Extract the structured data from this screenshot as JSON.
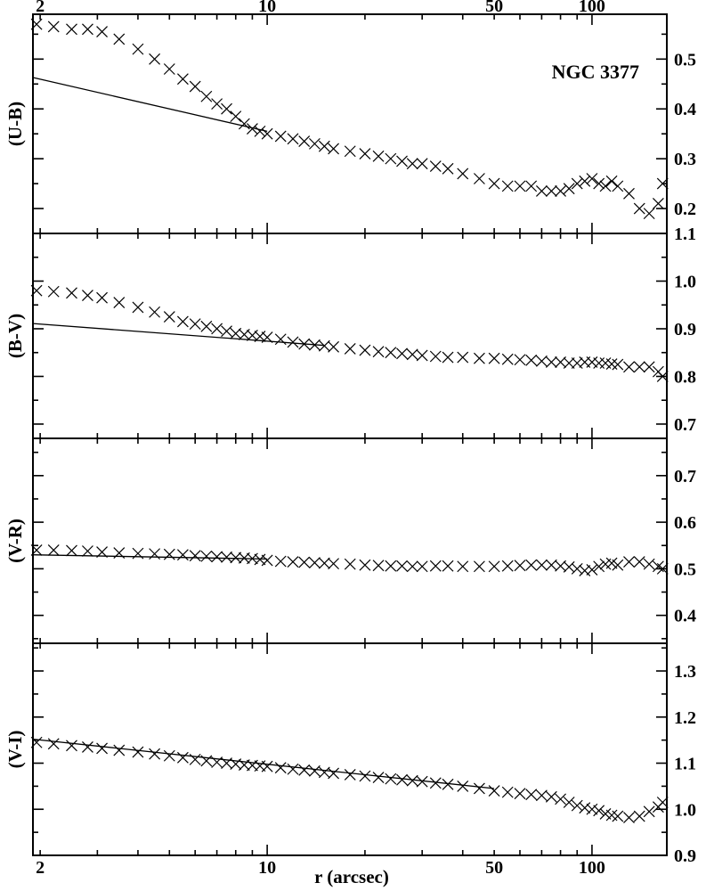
{
  "chart_data": {
    "type": "scatter",
    "galaxy_label": "NGC 3377",
    "xlabel": "r (arcsec)",
    "x_scale": "log",
    "xlim": [
      1.9,
      170
    ],
    "x_top_ticks": [
      2,
      10,
      50,
      100
    ],
    "x_bottom_ticks": [
      2,
      10,
      50,
      100
    ],
    "panels": [
      {
        "ylabel": "(U-B)",
        "ylim": [
          0.15,
          0.59
        ],
        "yticks": [
          0.2,
          0.3,
          0.4,
          0.5
        ],
        "fit_line": {
          "x": [
            1.9,
            10
          ],
          "y": [
            0.463,
            0.355
          ]
        },
        "points": {
          "x": [
            1.95,
            2.2,
            2.5,
            2.8,
            3.1,
            3.5,
            4.0,
            4.5,
            5.0,
            5.5,
            6.0,
            6.5,
            7.0,
            7.5,
            8.0,
            8.5,
            9.0,
            9.5,
            10,
            11,
            12,
            13,
            14,
            15,
            16,
            18,
            20,
            22,
            24,
            26,
            28,
            30,
            33,
            36,
            40,
            45,
            50,
            55,
            60,
            65,
            70,
            75,
            80,
            85,
            90,
            95,
            100,
            105,
            110,
            115,
            120,
            130,
            140,
            150,
            160,
            165
          ],
          "y": [
            0.57,
            0.565,
            0.56,
            0.56,
            0.555,
            0.54,
            0.52,
            0.5,
            0.48,
            0.46,
            0.445,
            0.425,
            0.41,
            0.4,
            0.385,
            0.37,
            0.36,
            0.355,
            0.35,
            0.345,
            0.34,
            0.335,
            0.33,
            0.325,
            0.32,
            0.315,
            0.31,
            0.305,
            0.3,
            0.295,
            0.29,
            0.29,
            0.285,
            0.28,
            0.27,
            0.26,
            0.25,
            0.245,
            0.245,
            0.245,
            0.235,
            0.235,
            0.235,
            0.24,
            0.25,
            0.255,
            0.26,
            0.25,
            0.245,
            0.255,
            0.245,
            0.23,
            0.2,
            0.19,
            0.21,
            0.25
          ]
        }
      },
      {
        "ylabel": "(B-V)",
        "ylim": [
          0.67,
          1.1
        ],
        "yticks": [
          0.7,
          0.8,
          0.9,
          1.0,
          1.1
        ],
        "fit_line": {
          "x": [
            1.9,
            15
          ],
          "y": [
            0.911,
            0.865
          ]
        },
        "points": {
          "x": [
            1.95,
            2.2,
            2.5,
            2.8,
            3.1,
            3.5,
            4.0,
            4.5,
            5.0,
            5.5,
            6.0,
            6.5,
            7.0,
            7.5,
            8.0,
            8.5,
            9.0,
            9.5,
            10,
            11,
            12,
            13,
            14,
            15,
            16,
            18,
            20,
            22,
            24,
            26,
            28,
            30,
            33,
            36,
            40,
            45,
            50,
            55,
            60,
            65,
            70,
            75,
            80,
            85,
            90,
            95,
            100,
            105,
            110,
            115,
            120,
            130,
            140,
            150,
            160,
            165
          ],
          "y": [
            0.98,
            0.978,
            0.975,
            0.97,
            0.965,
            0.955,
            0.945,
            0.935,
            0.925,
            0.915,
            0.91,
            0.905,
            0.9,
            0.895,
            0.89,
            0.888,
            0.886,
            0.884,
            0.882,
            0.878,
            0.872,
            0.868,
            0.866,
            0.864,
            0.862,
            0.858,
            0.855,
            0.852,
            0.85,
            0.848,
            0.846,
            0.844,
            0.842,
            0.84,
            0.84,
            0.838,
            0.838,
            0.836,
            0.835,
            0.834,
            0.832,
            0.83,
            0.83,
            0.828,
            0.828,
            0.83,
            0.83,
            0.828,
            0.828,
            0.826,
            0.825,
            0.82,
            0.82,
            0.82,
            0.81,
            0.8
          ]
        }
      },
      {
        "ylabel": "(V-R)",
        "ylim": [
          0.34,
          0.78
        ],
        "yticks": [
          0.4,
          0.5,
          0.6,
          0.7
        ],
        "fit_line": {
          "x": [
            1.9,
            10
          ],
          "y": [
            0.53,
            0.521
          ]
        },
        "points": {
          "x": [
            1.95,
            2.2,
            2.5,
            2.8,
            3.1,
            3.5,
            4.0,
            4.5,
            5.0,
            5.5,
            6.0,
            6.5,
            7.0,
            7.5,
            8.0,
            8.5,
            9.0,
            9.5,
            10,
            11,
            12,
            13,
            14,
            15,
            16,
            18,
            20,
            22,
            24,
            26,
            28,
            30,
            33,
            36,
            40,
            45,
            50,
            55,
            60,
            65,
            70,
            75,
            80,
            85,
            90,
            95,
            100,
            105,
            110,
            115,
            120,
            130,
            140,
            150,
            160,
            165
          ],
          "y": [
            0.54,
            0.54,
            0.539,
            0.538,
            0.536,
            0.534,
            0.533,
            0.532,
            0.531,
            0.53,
            0.528,
            0.527,
            0.526,
            0.525,
            0.524,
            0.523,
            0.522,
            0.52,
            0.518,
            0.516,
            0.515,
            0.514,
            0.513,
            0.512,
            0.511,
            0.51,
            0.508,
            0.507,
            0.506,
            0.506,
            0.505,
            0.505,
            0.506,
            0.506,
            0.505,
            0.505,
            0.505,
            0.506,
            0.507,
            0.508,
            0.508,
            0.508,
            0.506,
            0.504,
            0.5,
            0.496,
            0.498,
            0.505,
            0.51,
            0.512,
            0.508,
            0.515,
            0.515,
            0.51,
            0.505,
            0.5
          ]
        }
      },
      {
        "ylabel": "(V-I)",
        "ylim": [
          0.9,
          1.36
        ],
        "yticks": [
          0.9,
          1.0,
          1.1,
          1.2,
          1.3
        ],
        "fit_line": {
          "x": [
            1.9,
            50
          ],
          "y": [
            1.152,
            1.045
          ]
        },
        "points": {
          "x": [
            1.95,
            2.2,
            2.5,
            2.8,
            3.1,
            3.5,
            4.0,
            4.5,
            5.0,
            5.5,
            6.0,
            6.5,
            7.0,
            7.5,
            8.0,
            8.5,
            9.0,
            9.5,
            10,
            11,
            12,
            13,
            14,
            15,
            16,
            18,
            20,
            22,
            24,
            26,
            28,
            30,
            33,
            36,
            40,
            45,
            50,
            55,
            60,
            65,
            70,
            75,
            80,
            85,
            90,
            95,
            100,
            105,
            110,
            115,
            120,
            130,
            140,
            150,
            160,
            165
          ],
          "y": [
            1.145,
            1.142,
            1.138,
            1.135,
            1.132,
            1.128,
            1.124,
            1.12,
            1.116,
            1.112,
            1.108,
            1.105,
            1.102,
            1.1,
            1.098,
            1.096,
            1.095,
            1.094,
            1.093,
            1.09,
            1.087,
            1.085,
            1.083,
            1.08,
            1.078,
            1.075,
            1.072,
            1.069,
            1.066,
            1.064,
            1.062,
            1.06,
            1.057,
            1.054,
            1.05,
            1.045,
            1.04,
            1.037,
            1.034,
            1.032,
            1.03,
            1.027,
            1.022,
            1.015,
            1.008,
            1.003,
            1.0,
            0.997,
            0.99,
            0.987,
            0.985,
            0.982,
            0.985,
            0.995,
            1.005,
            1.015
          ]
        }
      }
    ]
  }
}
